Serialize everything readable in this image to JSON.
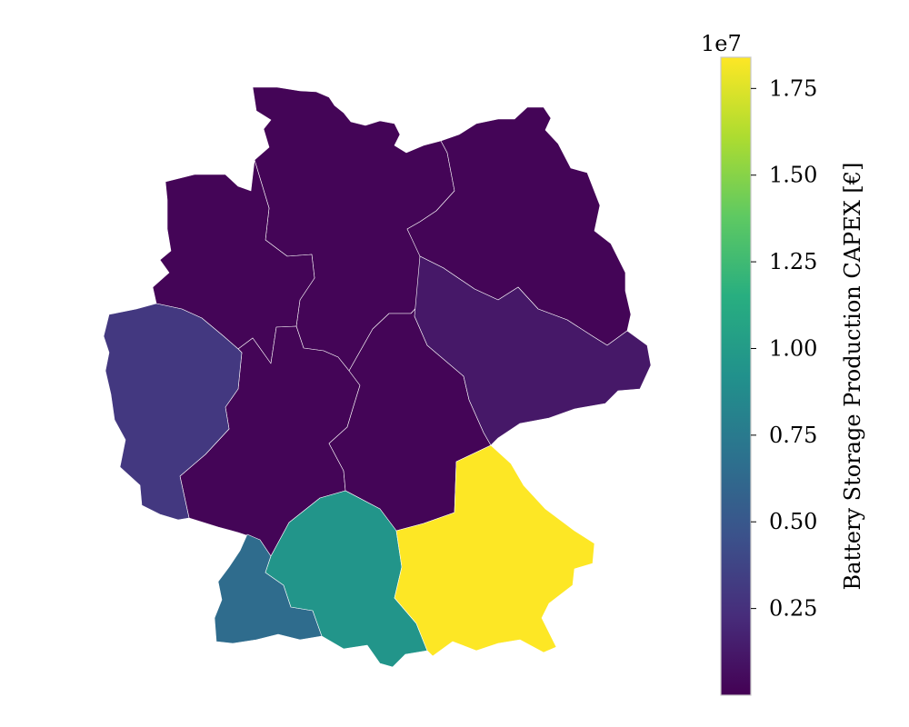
{
  "chart_data": {
    "type": "choropleth",
    "colormap": "viridis",
    "regions": [
      {
        "id": "north",
        "value": 200000
      },
      {
        "id": "northeast",
        "value": 200000
      },
      {
        "id": "northwest",
        "value": 200000
      },
      {
        "id": "central-north",
        "value": 200000
      },
      {
        "id": "central-hesse",
        "value": 200000
      },
      {
        "id": "central-thuringia",
        "value": 200000
      },
      {
        "id": "west",
        "value": 3000000
      },
      {
        "id": "east-saxony",
        "value": 1200000
      },
      {
        "id": "southwest",
        "value": 6500000
      },
      {
        "id": "south-central",
        "value": 9500000
      },
      {
        "id": "southeast",
        "value": 18400000
      }
    ],
    "colorbar": {
      "label": "Battery Storage Production CAPEX [€]",
      "exponent": "1e7",
      "min": 0,
      "max": 1.84,
      "ticks": [
        0.25,
        0.5,
        0.75,
        1.0,
        1.25,
        1.5,
        1.75
      ],
      "tick_labels": [
        "0.25",
        "0.50",
        "0.75",
        "1.00",
        "1.25",
        "1.50",
        "1.75"
      ]
    }
  }
}
